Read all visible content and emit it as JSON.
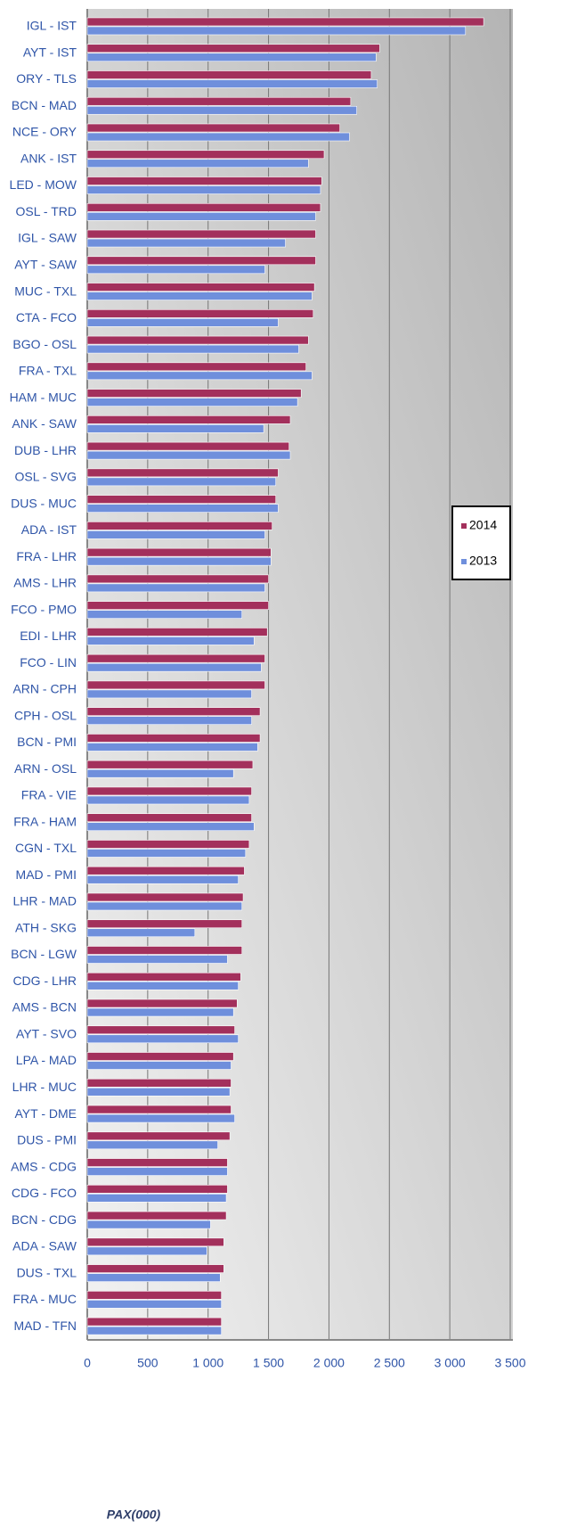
{
  "chart_data": {
    "type": "barh",
    "x_label": "PAX(000)",
    "categories": [
      "IGL - IST",
      "AYT - IST",
      "ORY - TLS",
      "BCN - MAD",
      "NCE - ORY",
      "ANK - IST",
      "LED - MOW",
      "OSL - TRD",
      "IGL - SAW",
      "AYT - SAW",
      "MUC - TXL",
      "CTA - FCO",
      "BGO - OSL",
      "FRA - TXL",
      "HAM - MUC",
      "ANK - SAW",
      "DUB - LHR",
      "OSL - SVG",
      "DUS - MUC",
      "ADA - IST",
      "FRA - LHR",
      "AMS - LHR",
      "FCO - PMO",
      "EDI - LHR",
      "FCO - LIN",
      "ARN - CPH",
      "CPH - OSL",
      "BCN - PMI",
      "ARN - OSL",
      "FRA - VIE",
      "FRA - HAM",
      "CGN - TXL",
      "MAD - PMI",
      "LHR - MAD",
      "ATH - SKG",
      "BCN - LGW",
      "CDG - LHR",
      "AMS - BCN",
      "AYT - SVO",
      "LPA - MAD",
      "LHR - MUC",
      "AYT - DME",
      "DUS - PMI",
      "AMS - CDG",
      "CDG - FCO",
      "BCN - CDG",
      "ADA - SAW",
      "DUS - TXL",
      "FRA - MUC",
      "MAD - TFN"
    ],
    "series": [
      {
        "name": "2014",
        "color": "#a3305c",
        "values": [
          3280,
          2420,
          2350,
          2180,
          2090,
          1960,
          1940,
          1930,
          1890,
          1890,
          1880,
          1870,
          1830,
          1810,
          1770,
          1680,
          1670,
          1580,
          1560,
          1530,
          1520,
          1500,
          1500,
          1490,
          1470,
          1470,
          1430,
          1430,
          1370,
          1360,
          1360,
          1340,
          1300,
          1290,
          1280,
          1280,
          1270,
          1240,
          1220,
          1210,
          1190,
          1190,
          1180,
          1160,
          1160,
          1150,
          1130,
          1130,
          1110,
          1110
        ]
      },
      {
        "name": "2013",
        "color": "#6f8fdc",
        "values": [
          3130,
          2390,
          2400,
          2230,
          2170,
          1830,
          1930,
          1890,
          1640,
          1470,
          1860,
          1580,
          1750,
          1860,
          1740,
          1460,
          1680,
          1560,
          1580,
          1470,
          1520,
          1470,
          1280,
          1380,
          1440,
          1360,
          1360,
          1410,
          1210,
          1340,
          1380,
          1310,
          1250,
          1280,
          890,
          1160,
          1250,
          1210,
          1250,
          1190,
          1180,
          1220,
          1080,
          1160,
          1150,
          1020,
          990,
          1100,
          1110,
          1110
        ]
      }
    ],
    "xlim": [
      0,
      3500
    ],
    "xticks": [
      0,
      500,
      {
        "value": 1000,
        "label": "1 000"
      },
      {
        "value": 1500,
        "label": "1 500"
      },
      {
        "value": 2000,
        "label": "2 000"
      },
      {
        "value": 2500,
        "label": "2 500"
      },
      {
        "value": 3000,
        "label": "3 000"
      },
      {
        "value": 3500,
        "label": "3 500"
      }
    ],
    "grid": true,
    "legend": "right"
  }
}
